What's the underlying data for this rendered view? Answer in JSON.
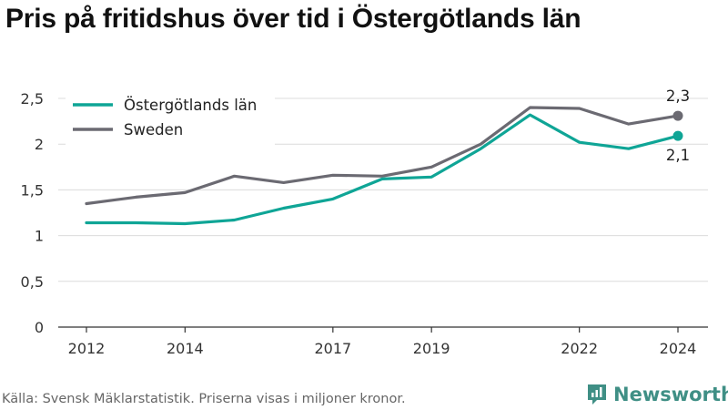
{
  "title": "Pris på fritidshus över tid i Östergötlands län",
  "source": "Källa: Svensk Mäklarstatistik. Priserna visas i miljoner kronor.",
  "brand": {
    "name": "Newsworthy",
    "color": "#3f8f85"
  },
  "chart_data": {
    "type": "line",
    "ylim": [
      0,
      2.5
    ],
    "yticks": [
      0,
      0.5,
      1,
      1.5,
      2,
      2.5
    ],
    "ytick_labels": [
      "0",
      "0,5",
      "1",
      "1,5",
      "2",
      "2,5"
    ],
    "xlim": [
      2012,
      2024
    ],
    "xticks": [
      2012,
      2014,
      2017,
      2019,
      2022,
      2024
    ],
    "xtick_labels": [
      "2012",
      "2014",
      "2017",
      "2019",
      "2022",
      "2024"
    ],
    "grid": true,
    "legend_position": "top-left",
    "x": [
      2012,
      2013,
      2014,
      2015,
      2016,
      2017,
      2018,
      2019,
      2020,
      2021,
      2022,
      2023,
      2024
    ],
    "series": [
      {
        "name": "Östergötlands län",
        "color": "#0fa596",
        "values": [
          1.14,
          1.14,
          1.13,
          1.17,
          1.3,
          1.4,
          1.62,
          1.64,
          1.95,
          2.32,
          2.02,
          1.95,
          2.09
        ],
        "end_label": "2,1"
      },
      {
        "name": "Sweden",
        "color": "#6b6a72",
        "values": [
          1.35,
          1.42,
          1.47,
          1.65,
          1.58,
          1.66,
          1.65,
          1.75,
          2.0,
          2.4,
          2.39,
          2.22,
          2.31
        ],
        "end_label": "2,3"
      }
    ]
  }
}
